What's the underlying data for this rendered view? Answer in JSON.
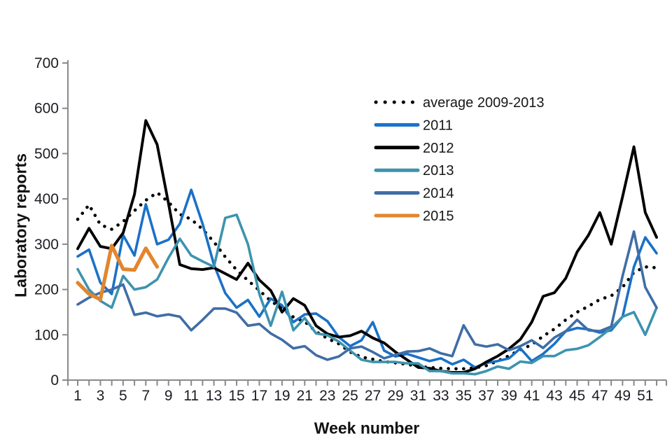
{
  "chart_data": {
    "type": "line",
    "title": "",
    "xlabel": "Week number",
    "ylabel": "Laboratory reports",
    "x": [
      1,
      2,
      3,
      4,
      5,
      6,
      7,
      8,
      9,
      10,
      11,
      12,
      13,
      14,
      15,
      16,
      17,
      18,
      19,
      20,
      21,
      22,
      23,
      24,
      25,
      26,
      27,
      28,
      29,
      30,
      31,
      32,
      33,
      34,
      35,
      36,
      37,
      38,
      39,
      40,
      41,
      42,
      43,
      44,
      45,
      46,
      47,
      48,
      49,
      50,
      51,
      52
    ],
    "x_axis": {
      "min": 1,
      "max": 52,
      "tick_every_weeks": 1,
      "labeled_ticks": [
        1,
        3,
        5,
        7,
        9,
        11,
        13,
        15,
        17,
        19,
        21,
        23,
        25,
        27,
        29,
        31,
        33,
        35,
        37,
        39,
        41,
        43,
        45,
        47,
        49,
        51
      ]
    },
    "y_axis": {
      "min": 0,
      "max": 700,
      "tick_step": 100,
      "tick_labels": [
        "0",
        "100",
        "200",
        "300",
        "400",
        "500",
        "600",
        "700"
      ]
    },
    "grid": "off",
    "legend_position": "inside-upper-center-right",
    "series": [
      {
        "name": "average 2009-2013",
        "style": "dotted",
        "color": "#000000",
        "width": 4.6,
        "values": [
          355,
          387,
          343,
          333,
          350,
          374,
          397,
          414,
          393,
          366,
          355,
          333,
          305,
          272,
          243,
          220,
          198,
          175,
          158,
          139,
          129,
          107,
          92,
          80,
          62,
          51,
          46,
          41,
          38,
          35,
          30,
          28,
          26,
          25,
          25,
          27,
          32,
          42,
          54,
          67,
          78,
          97,
          113,
          133,
          150,
          163,
          178,
          186,
          205,
          238,
          250,
          248
        ]
      },
      {
        "name": "2011",
        "style": "solid",
        "color": "#1A71C7",
        "width": 3.6,
        "values": [
          273,
          288,
          215,
          190,
          320,
          275,
          388,
          300,
          310,
          345,
          420,
          345,
          255,
          192,
          160,
          177,
          140,
          180,
          165,
          128,
          145,
          147,
          130,
          95,
          75,
          88,
          128,
          65,
          52,
          58,
          50,
          42,
          48,
          35,
          45,
          28,
          38,
          42,
          48,
          70,
          42,
          58,
          80,
          108,
          115,
          112,
          105,
          110,
          140,
          250,
          315,
          280
        ]
      },
      {
        "name": "2012",
        "style": "solid",
        "color": "#000000",
        "width": 3.9,
        "values": [
          290,
          335,
          295,
          290,
          325,
          410,
          573,
          520,
          390,
          255,
          246,
          244,
          248,
          235,
          222,
          258,
          221,
          198,
          150,
          180,
          165,
          120,
          102,
          95,
          98,
          108,
          93,
          82,
          62,
          45,
          28,
          26,
          20,
          17,
          17,
          25,
          40,
          53,
          69,
          90,
          128,
          185,
          193,
          225,
          283,
          320,
          370,
          300,
          405,
          515,
          370,
          315
        ]
      },
      {
        "name": "2013",
        "style": "solid",
        "color": "#3D93AE",
        "width": 3.6,
        "values": [
          245,
          200,
          175,
          160,
          230,
          200,
          205,
          222,
          270,
          312,
          275,
          262,
          250,
          358,
          365,
          300,
          190,
          120,
          195,
          110,
          137,
          103,
          99,
          85,
          65,
          45,
          40,
          40,
          40,
          37,
          37,
          20,
          20,
          15,
          15,
          13,
          20,
          30,
          25,
          41,
          38,
          53,
          53,
          66,
          69,
          77,
          95,
          115,
          140,
          150,
          100,
          160
        ]
      },
      {
        "name": "2014",
        "style": "solid",
        "color": "#3F6DA6",
        "width": 3.6,
        "values": [
          167,
          182,
          193,
          200,
          211,
          144,
          149,
          141,
          145,
          140,
          110,
          133,
          158,
          158,
          149,
          120,
          124,
          103,
          89,
          70,
          75,
          55,
          45,
          52,
          70,
          74,
          62,
          48,
          56,
          63,
          64,
          70,
          59,
          53,
          121,
          79,
          74,
          79,
          66,
          75,
          88,
          71,
          94,
          108,
          133,
          110,
          108,
          118,
          230,
          328,
          205,
          160
        ]
      },
      {
        "name": "2015",
        "style": "solid",
        "color": "#E2862D",
        "width": 5.2,
        "start_week": 1,
        "values": [
          215,
          190,
          178,
          297,
          245,
          243,
          291,
          250
        ]
      }
    ]
  },
  "styles": {
    "axis_color": "#8a8a8a",
    "tick_label_color": "#1c1c24",
    "legend_text_color": "#171717",
    "background": "#ffffff"
  }
}
